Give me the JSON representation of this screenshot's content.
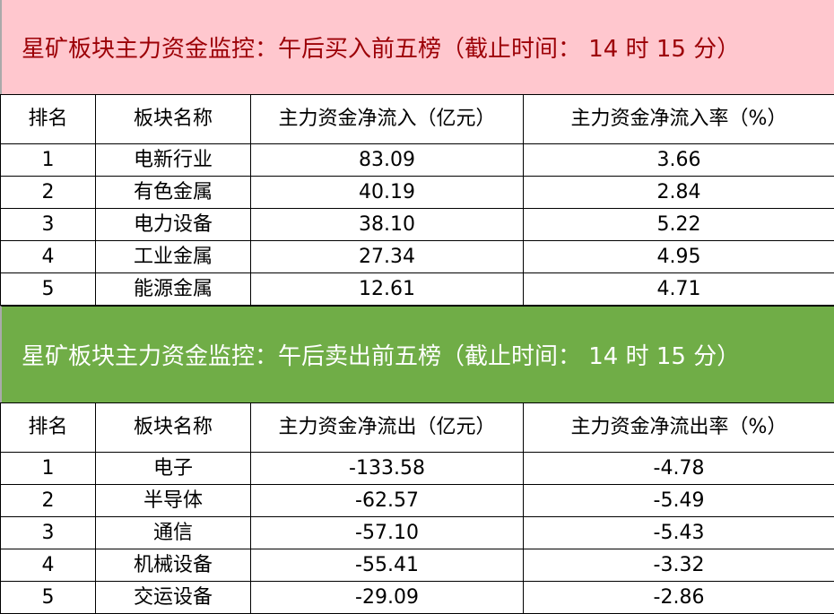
{
  "colors": {
    "buy_header_bg": "#FFC7CE",
    "buy_header_text": "#9C0006",
    "sell_header_bg": "#70AD47",
    "sell_header_text": "#FFFFFF"
  },
  "buy": {
    "title": "星矿板块主力资金监控：午后买入前五榜（截止时间： 14 时 15 分）",
    "headers": [
      "排名",
      "板块名称",
      "主力资金净流入（亿元）",
      "主力资金净流入率（%）"
    ],
    "rows": [
      [
        "1",
        "电新行业",
        "83.09",
        "3.66"
      ],
      [
        "2",
        "有色金属",
        "40.19",
        "2.84"
      ],
      [
        "3",
        "电力设备",
        "38.10",
        "5.22"
      ],
      [
        "4",
        "工业金属",
        "27.34",
        "4.95"
      ],
      [
        "5",
        "能源金属",
        "12.61",
        "4.71"
      ]
    ]
  },
  "sell": {
    "title": "星矿板块主力资金监控：午后卖出前五榜（截止时间： 14 时 15 分）",
    "headers": [
      "排名",
      "板块名称",
      "主力资金净流出（亿元）",
      "主力资金净流出率（%）"
    ],
    "rows": [
      [
        "1",
        "电子",
        "-133.58",
        "-4.78"
      ],
      [
        "2",
        "半导体",
        "-62.57",
        "-5.49"
      ],
      [
        "3",
        "通信",
        "-57.10",
        "-5.43"
      ],
      [
        "4",
        "机械设备",
        "-55.41",
        "-3.32"
      ],
      [
        "5",
        "交运设备",
        "-29.09",
        "-2.86"
      ]
    ]
  }
}
